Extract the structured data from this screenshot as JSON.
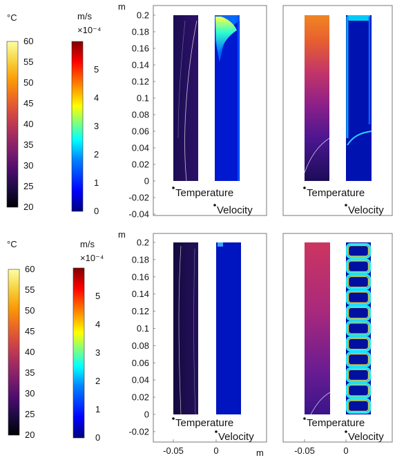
{
  "colors": {
    "temperature_scale": [
      "#000004",
      "#1a0b40",
      "#4a0c6b",
      "#781c6d",
      "#a52c60",
      "#cf4446",
      "#ed6925",
      "#fb9b06",
      "#f7d13d",
      "#fcffa4"
    ],
    "velocity_scale": [
      "#00007f",
      "#0000ff",
      "#007fff",
      "#00ffff",
      "#7fff7f",
      "#ffff00",
      "#ff7f00",
      "#ff0000",
      "#7f0000"
    ],
    "frame": "#777777",
    "contour": "#c8c8c8"
  },
  "chart_data": [
    {
      "type": "heatmap",
      "panel": "top-left",
      "ylabel": "m",
      "ylim": [
        -0.04,
        0.2
      ],
      "yticks": [
        "0.2",
        "0.18",
        "0.16",
        "0.14",
        "0.12",
        "0.1",
        "0.08",
        "0.06",
        "0.04",
        "0.02",
        "0",
        "-0.02",
        "-0.04"
      ],
      "legend_temperature": {
        "unit": "°C",
        "range": [
          20,
          60
        ],
        "ticks": [
          "60",
          "55",
          "50",
          "45",
          "40",
          "35",
          "30",
          "25",
          "20"
        ]
      },
      "legend_velocity": {
        "unit": "m/s",
        "scale": "×10⁻⁴",
        "range": [
          0,
          6
        ],
        "ticks": [
          "5",
          "4",
          "3",
          "2",
          "1",
          "0"
        ]
      },
      "labels": [
        "Temperature",
        "Velocity"
      ]
    },
    {
      "type": "heatmap",
      "panel": "top-right",
      "labels": [
        "Temperature",
        "Velocity"
      ]
    },
    {
      "type": "heatmap",
      "panel": "bottom-left",
      "ylabel": "m",
      "ylim": [
        -0.03,
        0.2
      ],
      "yticks": [
        "0.2",
        "0.18",
        "0.16",
        "0.14",
        "0.12",
        "0.1",
        "0.08",
        "0.06",
        "0.04",
        "0.02",
        "0",
        "-0.02"
      ],
      "xlabel": "m",
      "xticks": [
        "-0.05",
        "0"
      ],
      "legend_temperature": {
        "unit": "°C",
        "range": [
          20,
          60
        ],
        "ticks": [
          "60",
          "55",
          "50",
          "45",
          "40",
          "35",
          "30",
          "25",
          "20"
        ]
      },
      "legend_velocity": {
        "unit": "m/s",
        "scale": "×10⁻⁴",
        "range": [
          0,
          6
        ],
        "ticks": [
          "5",
          "4",
          "3",
          "2",
          "1",
          "0"
        ]
      },
      "labels": [
        "Temperature",
        "Velocity"
      ]
    },
    {
      "type": "heatmap",
      "panel": "bottom-right",
      "xticks": [
        "-0.05",
        "0"
      ],
      "labels": [
        "Temperature",
        "Velocity"
      ]
    }
  ]
}
